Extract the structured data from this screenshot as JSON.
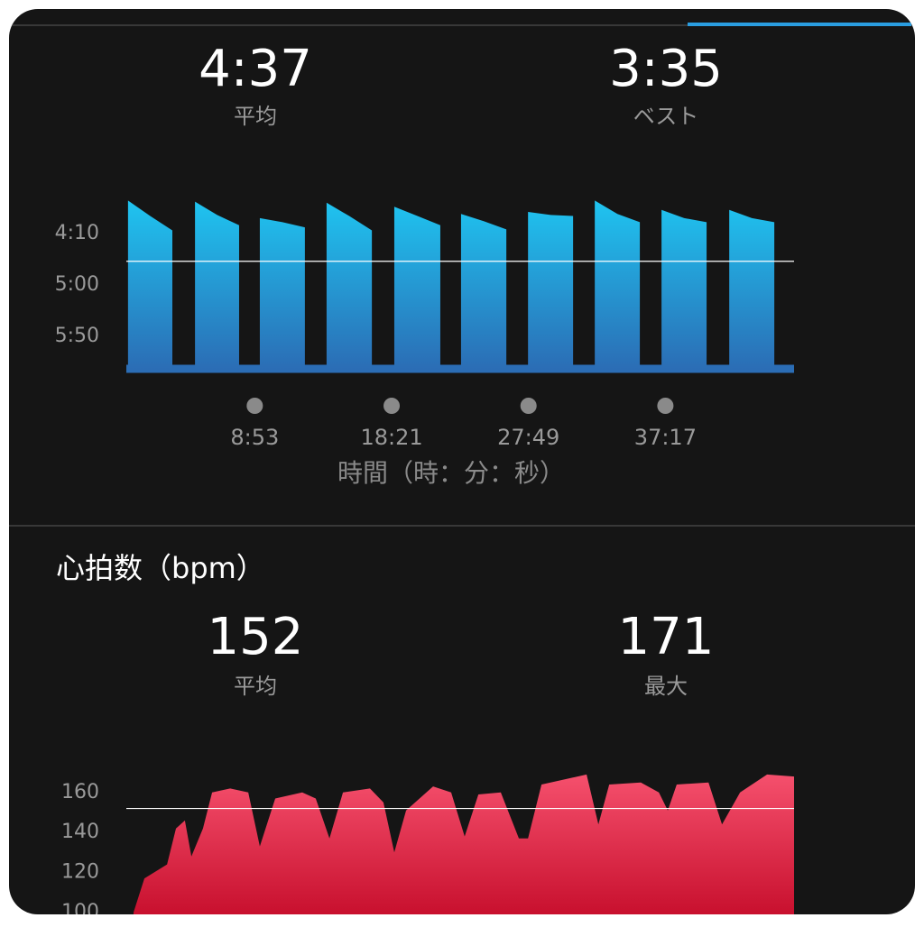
{
  "chart_data": [
    {
      "type": "area",
      "stats": [
        {
          "value": 277,
          "label": "4:37",
          "caption": "平均"
        },
        {
          "value": 215,
          "label": "3:35",
          "caption": "ベスト"
        }
      ],
      "x_label": "時間（時：分：秒）",
      "xlim": [
        0,
        2771
      ],
      "xticks": [
        {
          "value": 533,
          "label": "8:53"
        },
        {
          "value": 1101,
          "label": "18:21"
        },
        {
          "value": 1669,
          "label": "27:49"
        },
        {
          "value": 2237,
          "label": "37:17"
        }
      ],
      "ylim": [
        382,
        215
      ],
      "yticks": [
        {
          "value": 250,
          "label": "4:10"
        },
        {
          "value": 300,
          "label": "5:00"
        },
        {
          "value": 350,
          "label": "5:50"
        }
      ],
      "series": [
        {
          "color": "#1fc4f0",
          "color_bottom": "#2b6db5",
          "x": [
            7,
            99,
            191,
            238,
            285,
            377,
            468,
            511,
            554,
            648,
            741,
            786,
            831,
            925,
            1019,
            1065,
            1112,
            1208,
            1303,
            1346,
            1389,
            1483,
            1577,
            1622,
            1667,
            1761,
            1854,
            1899,
            1944,
            2038,
            2131,
            2176,
            2221,
            2315,
            2408,
            2455,
            2502,
            2596,
            2689
          ],
          "values": [
            218,
            233,
            247,
            null,
            219,
            232,
            242,
            null,
            235,
            239,
            244,
            null,
            220,
            233,
            247,
            null,
            224,
            233,
            242,
            null,
            231,
            238,
            246,
            null,
            229,
            232,
            233,
            null,
            218,
            231,
            239,
            null,
            227,
            235,
            239,
            null,
            227,
            235,
            239
          ]
        }
      ]
    },
    {
      "type": "area",
      "title": "心拍数（bpm）",
      "stats": [
        {
          "value": 152,
          "caption": "平均"
        },
        {
          "value": 171,
          "caption": "最大"
        }
      ],
      "xlim": [
        0,
        2771
      ],
      "ylim": [
        99,
        173
      ],
      "yticks": [
        160,
        140,
        120,
        100
      ],
      "series": [
        {
          "color": "#f5506d",
          "color_bottom": "#c8102e",
          "x": [
            30,
            75,
            169,
            206,
            243,
            270,
            318,
            356,
            431,
            506,
            554,
            618,
            730,
            786,
            843,
            899,
            1011,
            1067,
            1112,
            1161,
            1273,
            1348,
            1404,
            1461,
            1554,
            1629,
            1667,
            1723,
            1873,
            1910,
            1959,
            2004,
            2135,
            2210,
            2247,
            2284,
            2416,
            2472,
            2547,
            2659,
            2771
          ],
          "values": [
            100,
            117,
            124,
            142,
            146,
            128,
            142,
            160,
            162,
            160,
            133,
            157,
            160,
            157,
            137,
            160,
            162,
            155,
            130,
            151,
            163,
            160,
            138,
            159,
            160,
            137,
            137,
            164,
            168,
            169,
            144,
            164,
            165,
            160,
            151,
            164,
            165,
            144,
            160,
            169,
            168
          ]
        }
      ]
    }
  ]
}
